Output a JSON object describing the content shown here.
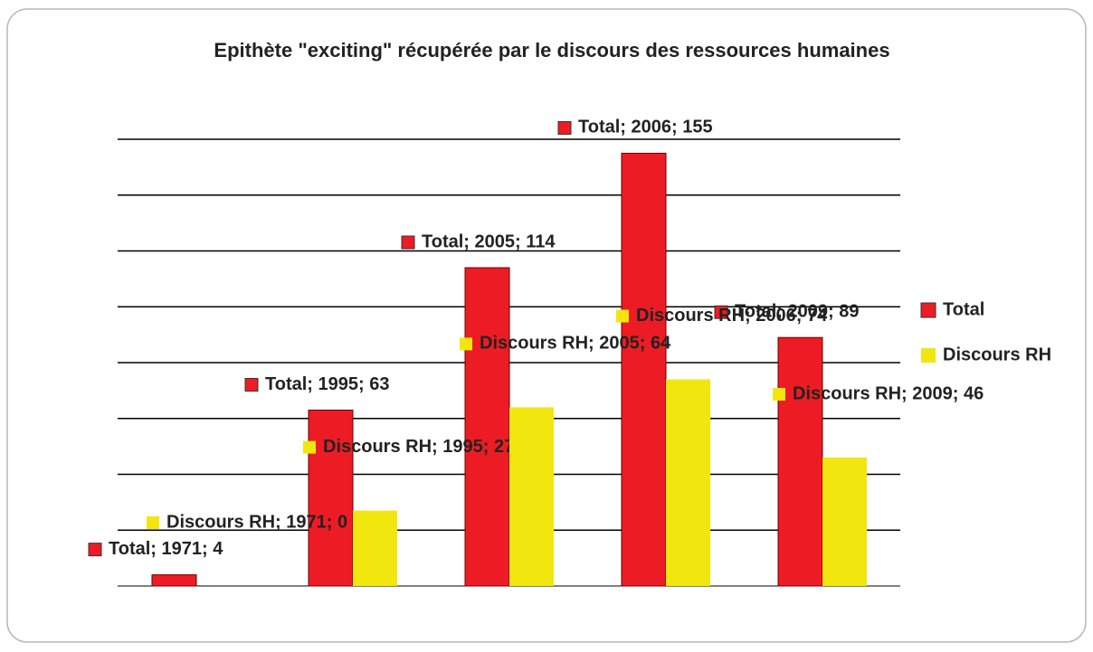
{
  "chart_data": {
    "type": "bar",
    "title": "Epithète \"exciting\" récupérée par  le discours des ressources humaines",
    "categories": [
      "1971",
      "1995",
      "2005",
      "2006",
      "2009"
    ],
    "series": [
      {
        "name": "Total",
        "color": "#ed1c24",
        "values": [
          4,
          63,
          114,
          155,
          89
        ],
        "value_labels": [
          "Total; 1971; 4",
          "Total; 1995; 63",
          "Total; 2005; 114",
          "Total; 2006; 155",
          "Total; 2009; 89"
        ]
      },
      {
        "name": "Discours RH",
        "color": "#f2e60f",
        "values": [
          0,
          27,
          64,
          74,
          46
        ],
        "value_labels": [
          "Discours RH; 1971; 0",
          "Discours RH; 1995; 27",
          "Discours RH; 2005; 64",
          "Discours RH; 2006; 74",
          "Discours RH; 2009; 46"
        ]
      }
    ],
    "ylim": [
      0,
      160
    ],
    "yticks": [
      0,
      20,
      40,
      60,
      80,
      100,
      120,
      140,
      160
    ],
    "grid": true,
    "legend": "right"
  }
}
